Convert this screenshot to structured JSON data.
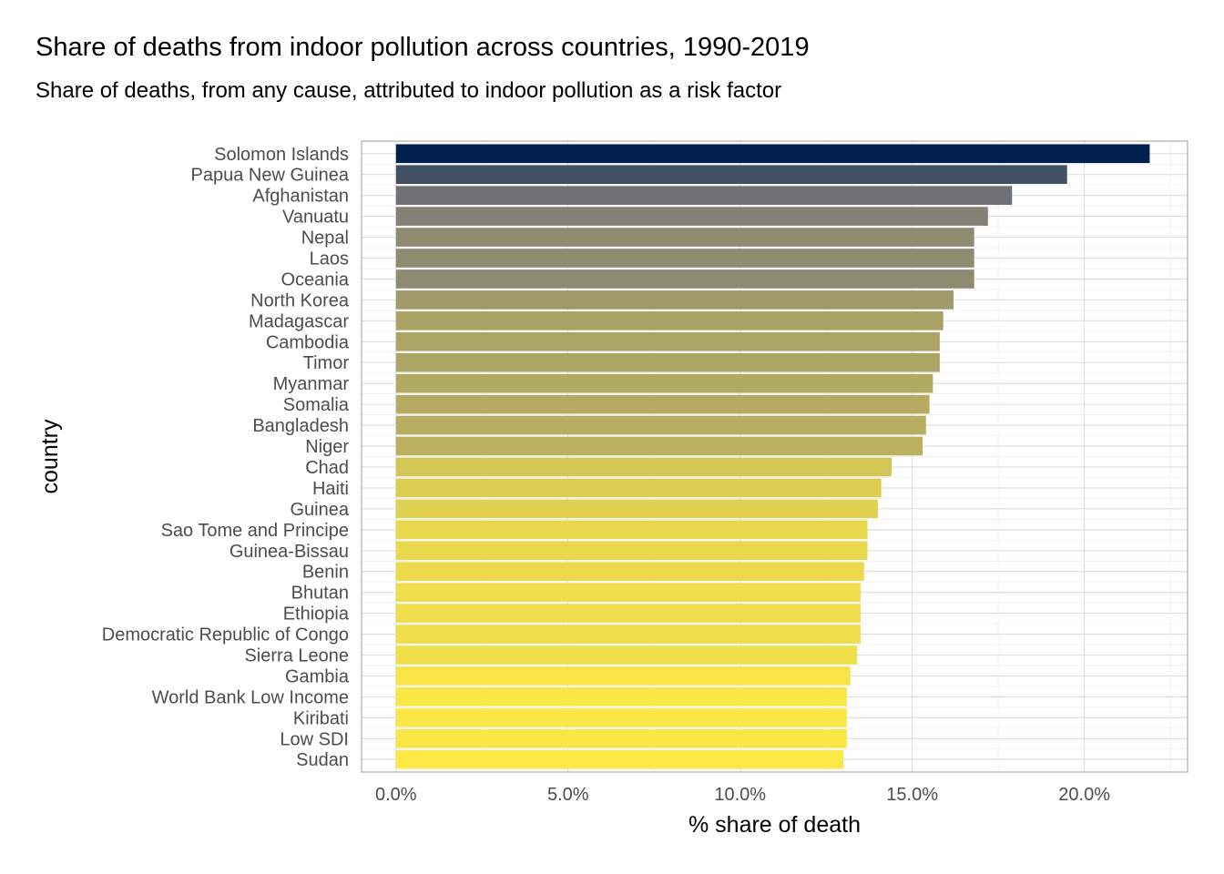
{
  "chart_data": {
    "type": "bar",
    "orientation": "horizontal",
    "title": "Share of deaths from indoor pollution across countries, 1990-2019",
    "subtitle": "Share of deaths, from any cause, attributed to indoor pollution as a risk factor",
    "xlabel": "% share of death",
    "ylabel": "country",
    "xlim": [
      -1.0,
      23.0
    ],
    "xticks": [
      0,
      5,
      10,
      15,
      20
    ],
    "xtick_labels": [
      "0.0%",
      "5.0%",
      "10.0%",
      "15.0%",
      "20.0%"
    ],
    "grid": true,
    "color_scale": [
      "#fde945",
      "#7c7b78",
      "#00204d"
    ],
    "categories": [
      "Solomon Islands",
      "Papua New Guinea",
      "Afghanistan",
      "Vanuatu",
      "Nepal",
      "Laos",
      "Oceania",
      "North Korea",
      "Madagascar",
      "Cambodia",
      "Timor",
      "Myanmar",
      "Somalia",
      "Bangladesh",
      "Niger",
      "Chad",
      "Haiti",
      "Guinea",
      "Sao Tome and Principe",
      "Guinea-Bissau",
      "Benin",
      "Bhutan",
      "Ethiopia",
      "Democratic Republic of Congo",
      "Sierra Leone",
      "Gambia",
      "World Bank Low Income",
      "Kiribati",
      "Low SDI",
      "Sudan"
    ],
    "values": [
      21.9,
      19.5,
      17.9,
      17.2,
      16.8,
      16.8,
      16.8,
      16.2,
      15.9,
      15.8,
      15.8,
      15.6,
      15.5,
      15.4,
      15.3,
      14.4,
      14.1,
      14.0,
      13.7,
      13.7,
      13.6,
      13.5,
      13.5,
      13.5,
      13.4,
      13.2,
      13.1,
      13.1,
      13.1,
      13.0
    ]
  }
}
